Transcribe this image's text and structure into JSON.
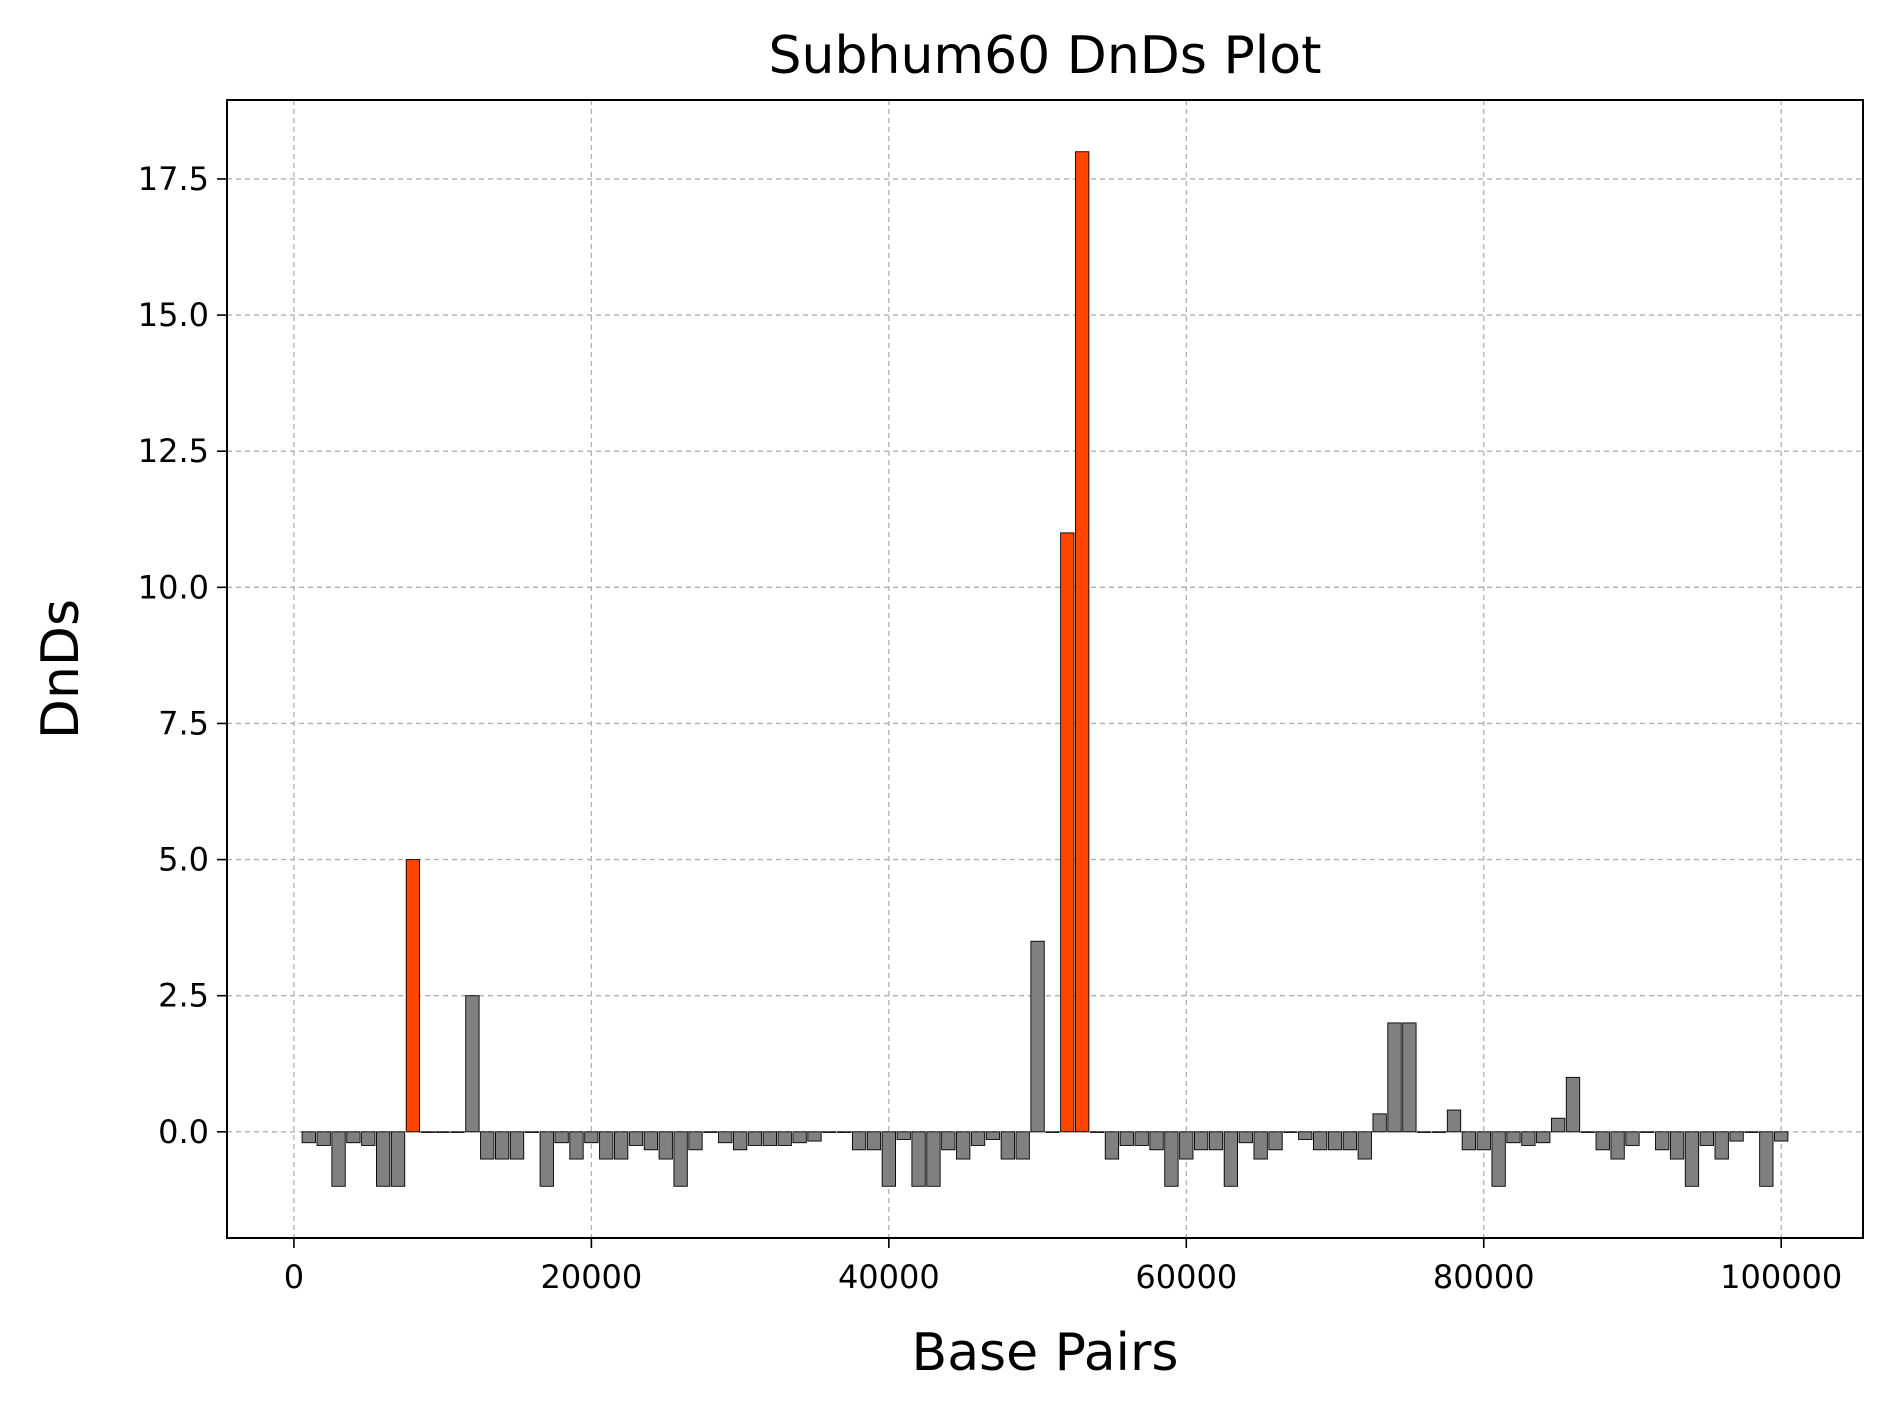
{
  "chart_data": {
    "type": "bar",
    "title": "Subhum60 DnDs Plot",
    "xlabel": "Base Pairs",
    "ylabel": "DnDs",
    "xlim": [
      -4500,
      105500
    ],
    "ylim": [
      -1.95,
      18.95
    ],
    "x_ticks": [
      0,
      20000,
      40000,
      60000,
      80000,
      100000
    ],
    "y_ticks": [
      0.0,
      2.5,
      5.0,
      7.5,
      10.0,
      12.5,
      15.0,
      17.5
    ],
    "grid": true,
    "bar_width": 900,
    "colors": {
      "default": "#808080",
      "highlight": "#ff4500",
      "edge": "#000000"
    },
    "highlight_threshold": 5,
    "x": [
      1000,
      2000,
      3000,
      4000,
      5000,
      6000,
      7000,
      8000,
      9000,
      10000,
      11000,
      12000,
      13000,
      14000,
      15000,
      16000,
      17000,
      18000,
      19000,
      20000,
      21000,
      22000,
      23000,
      24000,
      25000,
      26000,
      27000,
      28000,
      29000,
      30000,
      31000,
      32000,
      33000,
      34000,
      35000,
      36000,
      37000,
      38000,
      39000,
      40000,
      41000,
      42000,
      43000,
      44000,
      45000,
      46000,
      47000,
      48000,
      49000,
      50000,
      51000,
      52000,
      53000,
      54000,
      55000,
      56000,
      57000,
      58000,
      59000,
      60000,
      61000,
      62000,
      63000,
      64000,
      65000,
      66000,
      67000,
      68000,
      69000,
      70000,
      71000,
      72000,
      73000,
      74000,
      75000,
      76000,
      77000,
      78000,
      79000,
      80000,
      81000,
      82000,
      83000,
      84000,
      85000,
      86000,
      87000,
      88000,
      89000,
      90000,
      91000,
      92000,
      93000,
      94000,
      95000,
      96000,
      97000,
      98000,
      99000,
      100000
    ],
    "values": [
      -0.2,
      -0.25,
      -1,
      -0.2,
      -0.25,
      -1,
      -1,
      5,
      0,
      0,
      0,
      2.5,
      -0.5,
      -0.5,
      -0.5,
      0,
      -1,
      -0.2,
      -0.5,
      -0.2,
      -0.5,
      -0.5,
      -0.25,
      -0.33,
      -0.5,
      -1,
      -0.33,
      0,
      -0.2,
      -0.33,
      -0.25,
      -0.25,
      -0.25,
      -0.2,
      -0.17,
      0,
      0,
      -0.33,
      -0.33,
      -1,
      -0.14,
      -1,
      -1,
      -0.33,
      -0.5,
      -0.25,
      -0.14,
      -0.5,
      -0.5,
      3.5,
      0,
      11,
      18,
      0,
      -0.5,
      -0.25,
      -0.25,
      -0.33,
      -1,
      -0.5,
      -0.33,
      -0.33,
      -1,
      -0.2,
      -0.5,
      -0.33,
      0,
      -0.14,
      -0.33,
      -0.33,
      -0.33,
      -0.5,
      0.33,
      2,
      2,
      0,
      0,
      0.4,
      -0.33,
      -0.33,
      -1,
      -0.2,
      -0.25,
      -0.2,
      0.25,
      1,
      0,
      -0.33,
      -0.5,
      -0.25,
      0,
      -0.33,
      -0.5,
      -1,
      -0.25,
      -0.5,
      -0.17,
      0,
      -1,
      -0.17
    ]
  }
}
